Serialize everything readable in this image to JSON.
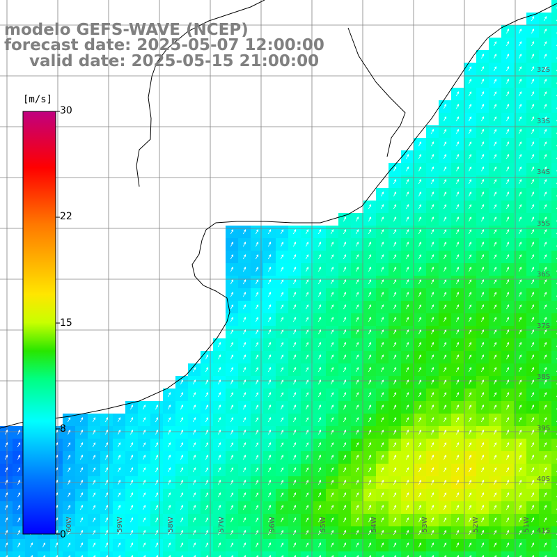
{
  "title": {
    "line1": "modelo GEFS-WAVE (NCEP)",
    "line2": "forecast date: 2025-05-07 12:00:00",
    "line3": "valid date: 2025-05-15 21:00:00"
  },
  "colorbar": {
    "unit": "[m/s]",
    "ticks": [
      "30",
      "22",
      "15",
      "8",
      "0"
    ],
    "stops": [
      "#0000ff",
      "#00a0ff",
      "#00ffff",
      "#00ff00",
      "#ffff00",
      "#ff8000",
      "#ff0000",
      "#c00080"
    ]
  },
  "lat_labels": [
    "32S",
    "33S",
    "34S",
    "35S",
    "36S",
    "37S",
    "38S",
    "39S",
    "40S",
    "41S"
  ],
  "lon_labels": [
    "60W",
    "59W",
    "58W",
    "57W",
    "56W",
    "55W",
    "54W",
    "53W",
    "52W",
    "51W"
  ],
  "colors": {
    "grid": "#808080",
    "coast": "#000000",
    "arrow": "#ffffff",
    "land": "#ffffff"
  }
}
